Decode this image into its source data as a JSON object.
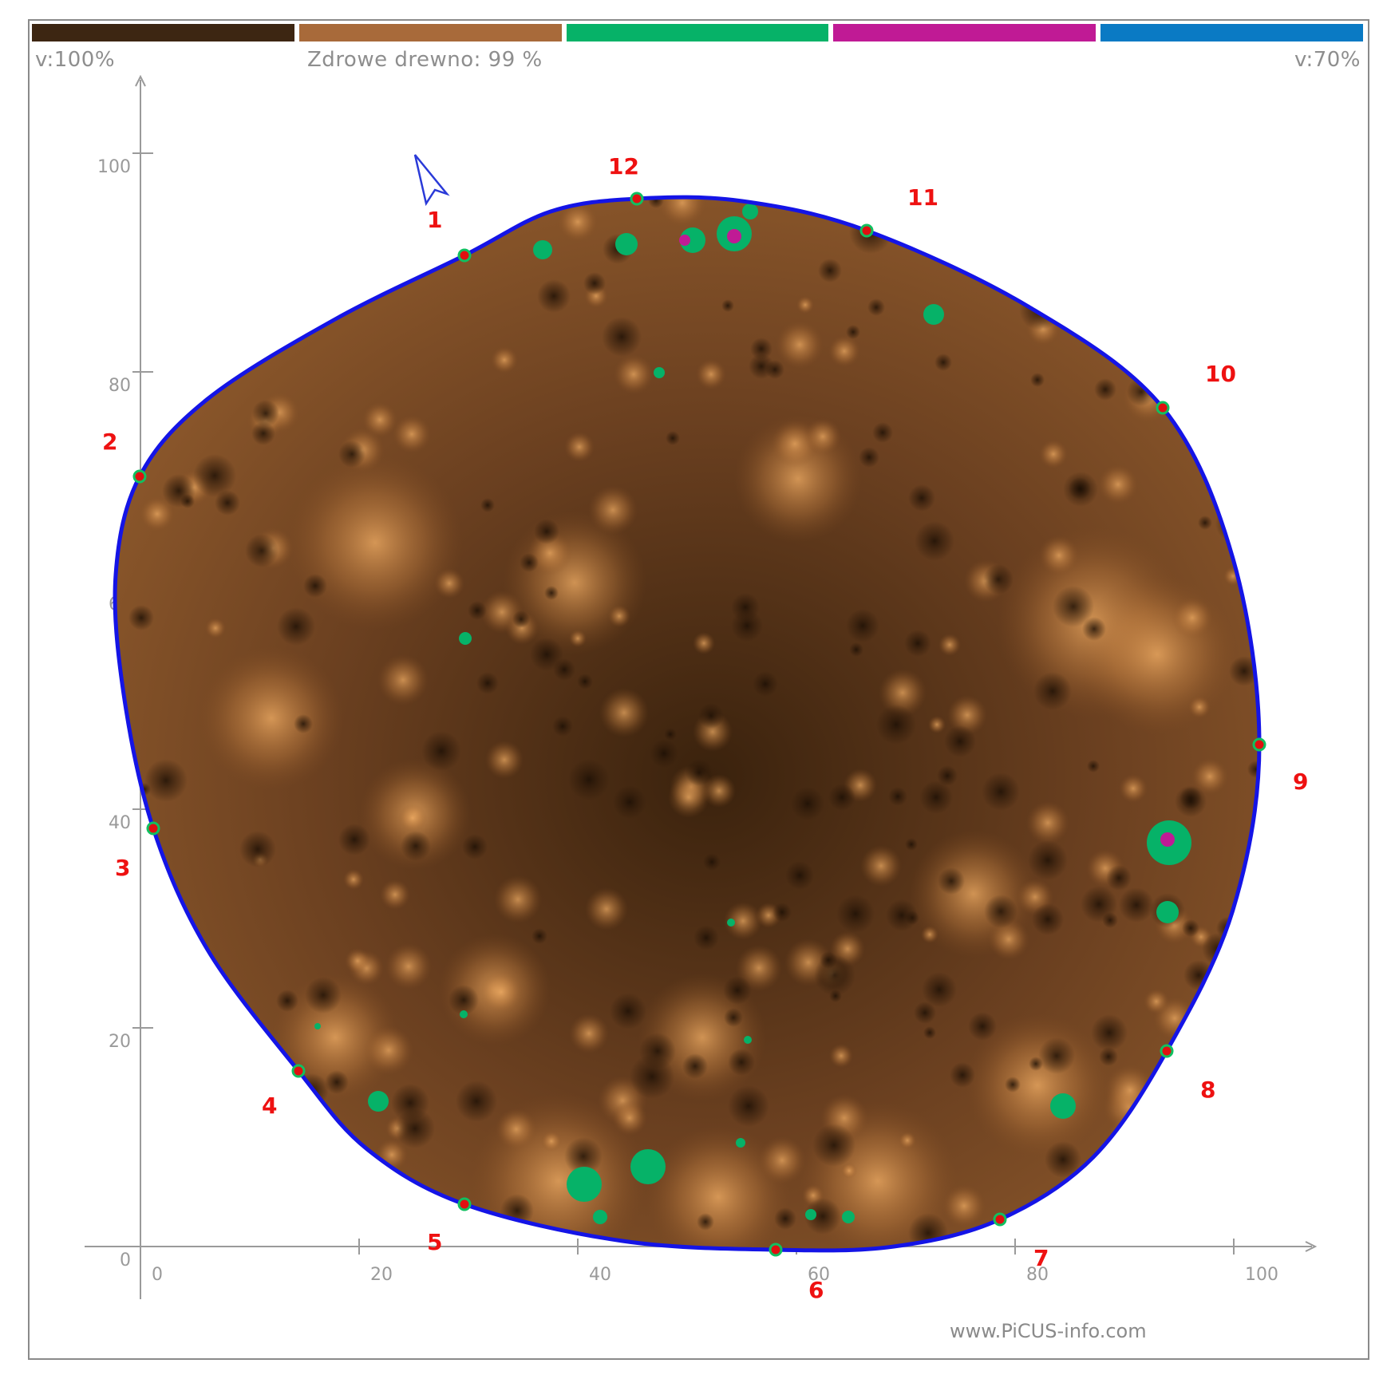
{
  "legend": {
    "colors": [
      "#3d2612",
      "#a86a3a",
      "#06b268",
      "#c01a95",
      "#0a7ac4"
    ],
    "left_label": "v:100%",
    "center_label": "Zdrowe drewno: 99 %",
    "right_label": "v:70%"
  },
  "axes": {
    "x_ticks": [
      "0",
      "20",
      "40",
      "60",
      "80",
      "100"
    ],
    "y_ticks": [
      "0",
      "20",
      "40",
      "60",
      "80",
      "100"
    ]
  },
  "sensors": [
    "1",
    "2",
    "3",
    "4",
    "5",
    "6",
    "7",
    "8",
    "9",
    "10",
    "11",
    "12"
  ],
  "direction_icon": "north-arrow-icon",
  "footer": "www.PiCUS-info.com"
}
